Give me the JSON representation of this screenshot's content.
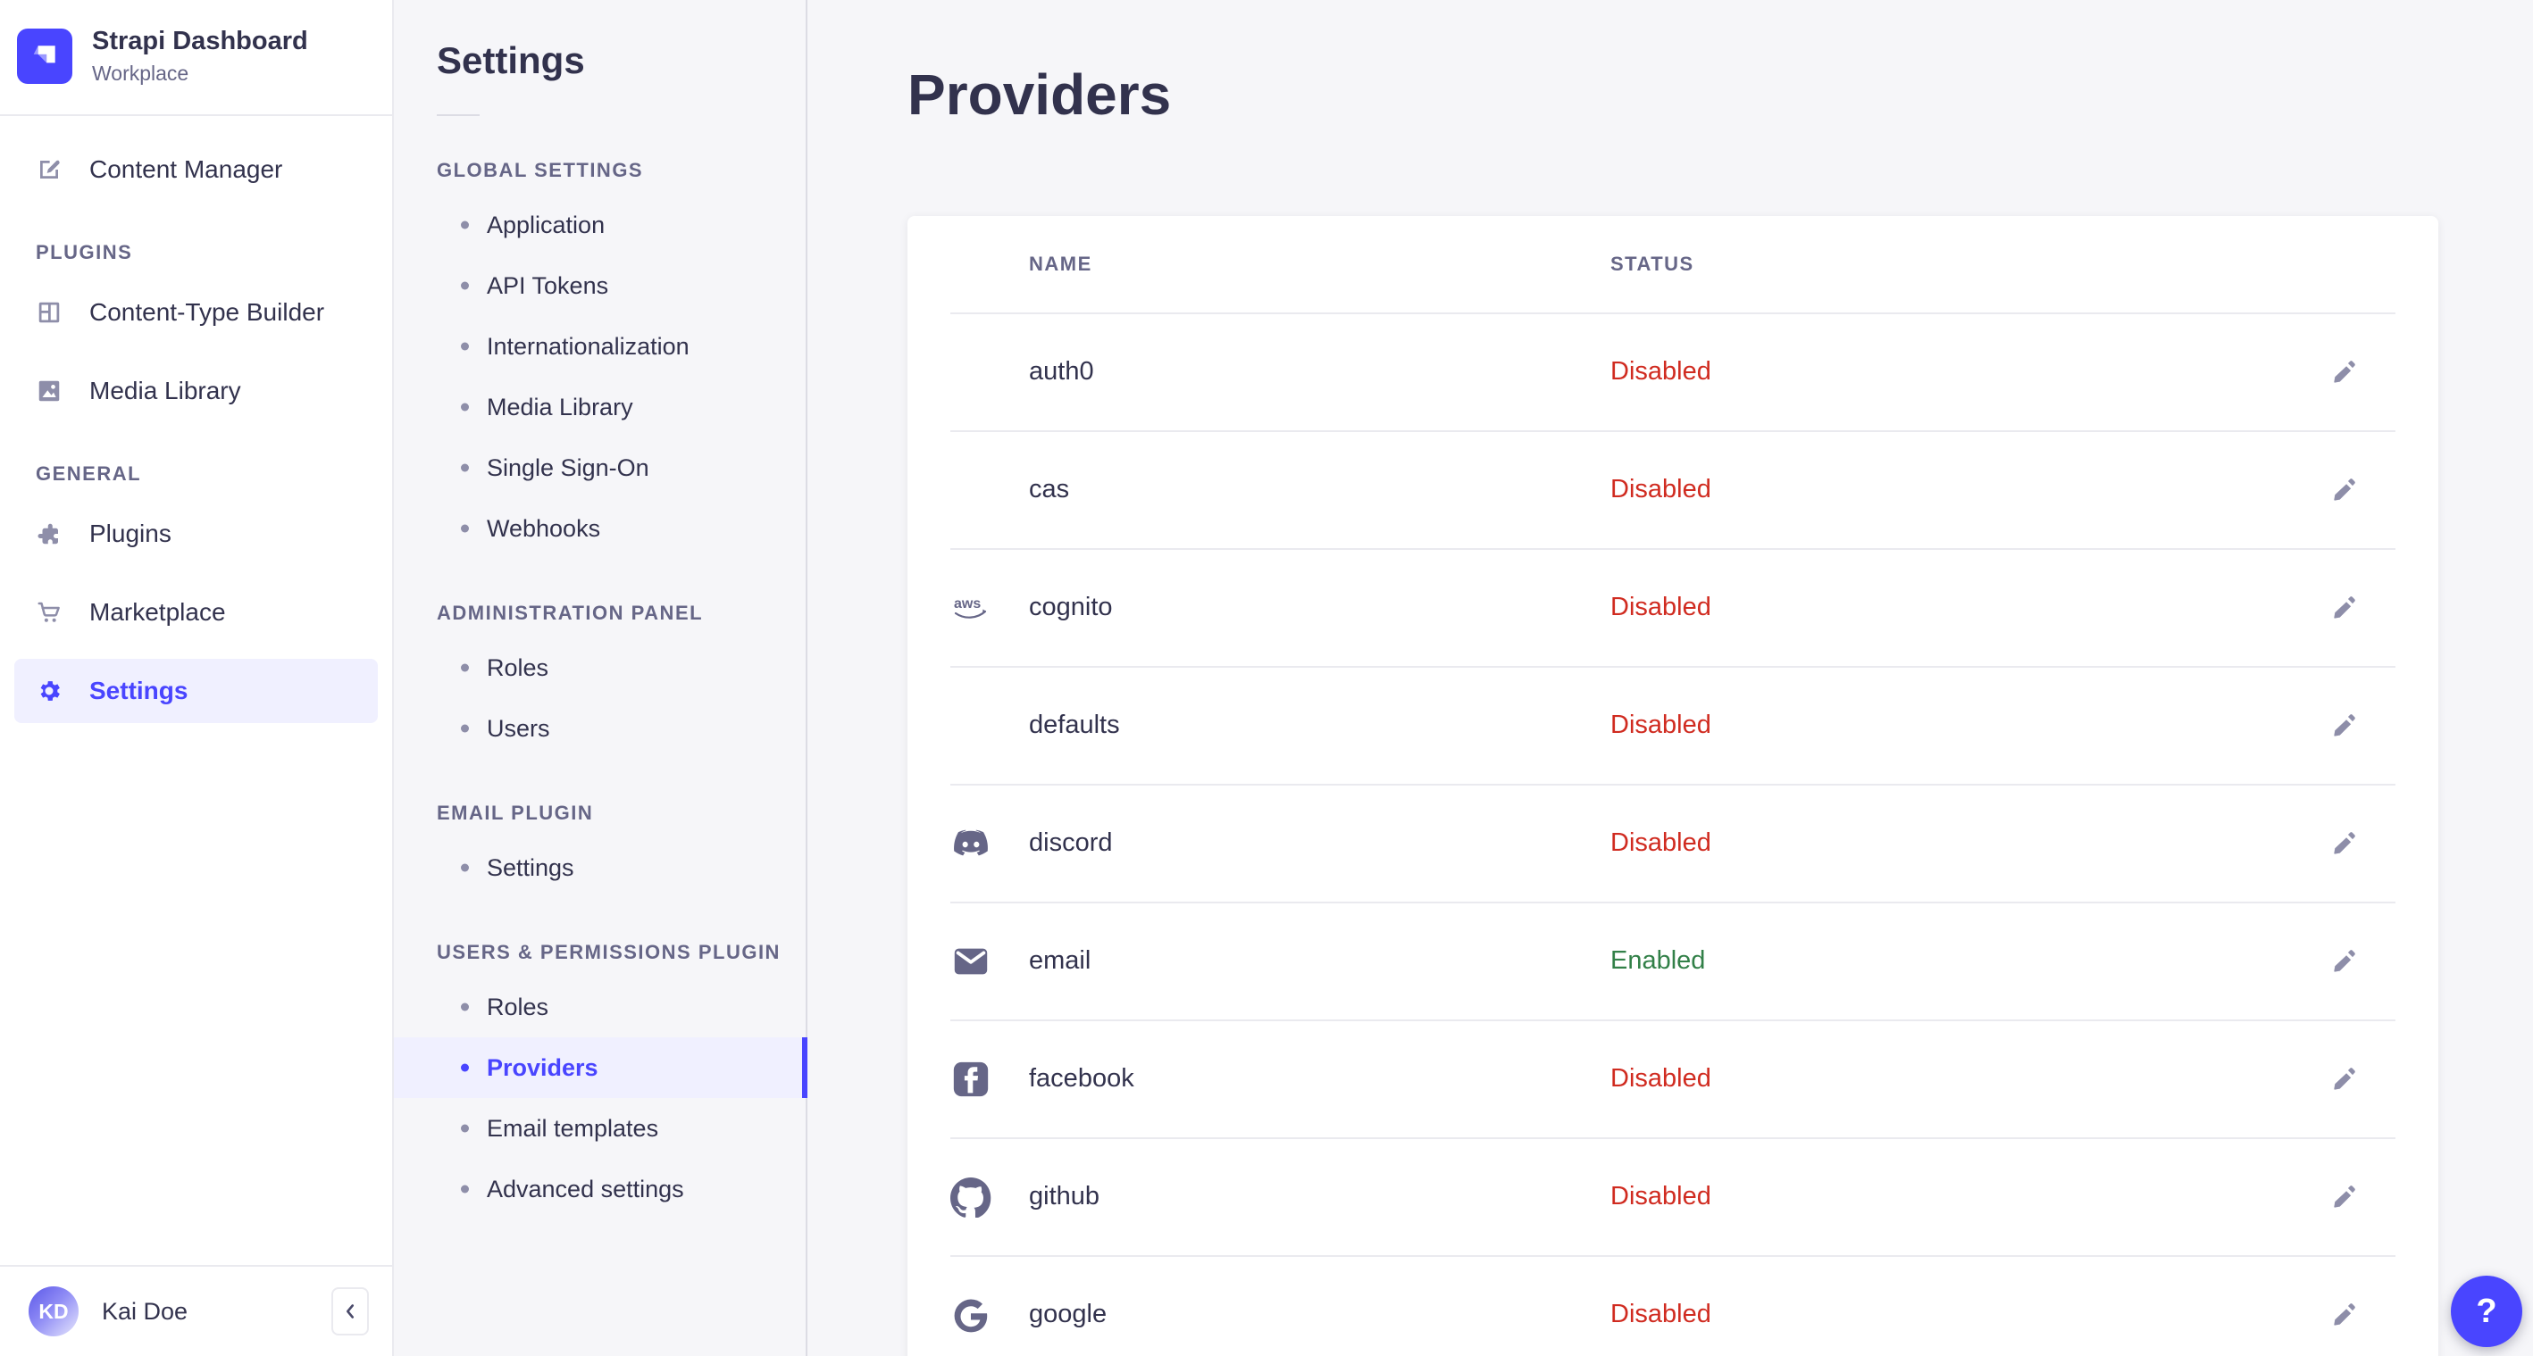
{
  "brand": {
    "title": "Strapi Dashboard",
    "subtitle": "Workplace"
  },
  "sidebar": {
    "primary_items": [
      {
        "label": "Content Manager",
        "icon": "content-manager-icon"
      }
    ],
    "sections": [
      {
        "label": "PLUGINS",
        "items": [
          {
            "label": "Content-Type Builder",
            "icon": "content-type-builder-icon"
          },
          {
            "label": "Media Library",
            "icon": "media-library-icon"
          }
        ]
      },
      {
        "label": "GENERAL",
        "items": [
          {
            "label": "Plugins",
            "icon": "plugins-icon"
          },
          {
            "label": "Marketplace",
            "icon": "marketplace-icon"
          },
          {
            "label": "Settings",
            "icon": "settings-gear-icon",
            "active": true
          }
        ]
      }
    ],
    "user": {
      "name": "Kai Doe",
      "initials": "KD"
    }
  },
  "settings_nav": {
    "title": "Settings",
    "sections": [
      {
        "label": "GLOBAL SETTINGS",
        "items": [
          {
            "label": "Application"
          },
          {
            "label": "API Tokens"
          },
          {
            "label": "Internationalization"
          },
          {
            "label": "Media Library"
          },
          {
            "label": "Single Sign-On"
          },
          {
            "label": "Webhooks"
          }
        ]
      },
      {
        "label": "ADMINISTRATION PANEL",
        "items": [
          {
            "label": "Roles"
          },
          {
            "label": "Users"
          }
        ]
      },
      {
        "label": "EMAIL PLUGIN",
        "items": [
          {
            "label": "Settings"
          }
        ]
      },
      {
        "label": "USERS & PERMISSIONS PLUGIN",
        "items": [
          {
            "label": "Roles"
          },
          {
            "label": "Providers",
            "active": true
          },
          {
            "label": "Email templates"
          },
          {
            "label": "Advanced settings"
          }
        ]
      }
    ]
  },
  "main": {
    "title": "Providers",
    "table": {
      "columns": [
        "NAME",
        "STATUS"
      ],
      "status_colors": {
        "Enabled": "#328048",
        "Disabled": "#D02B20"
      },
      "rows": [
        {
          "name": "auth0",
          "icon": null,
          "status": "Disabled"
        },
        {
          "name": "cas",
          "icon": null,
          "status": "Disabled"
        },
        {
          "name": "cognito",
          "icon": "aws-icon",
          "status": "Disabled"
        },
        {
          "name": "defaults",
          "icon": null,
          "status": "Disabled"
        },
        {
          "name": "discord",
          "icon": "discord-icon",
          "status": "Disabled"
        },
        {
          "name": "email",
          "icon": "email-icon",
          "status": "Enabled"
        },
        {
          "name": "facebook",
          "icon": "facebook-icon",
          "status": "Disabled"
        },
        {
          "name": "github",
          "icon": "github-icon",
          "status": "Disabled"
        },
        {
          "name": "google",
          "icon": "google-icon",
          "status": "Disabled"
        }
      ]
    }
  },
  "help": {
    "label": "?"
  },
  "colors": {
    "primary": "#4945FF",
    "primary_bg": "#F0F0FF",
    "danger": "#D02B20",
    "success": "#328048",
    "background": "#F6F6F9"
  }
}
